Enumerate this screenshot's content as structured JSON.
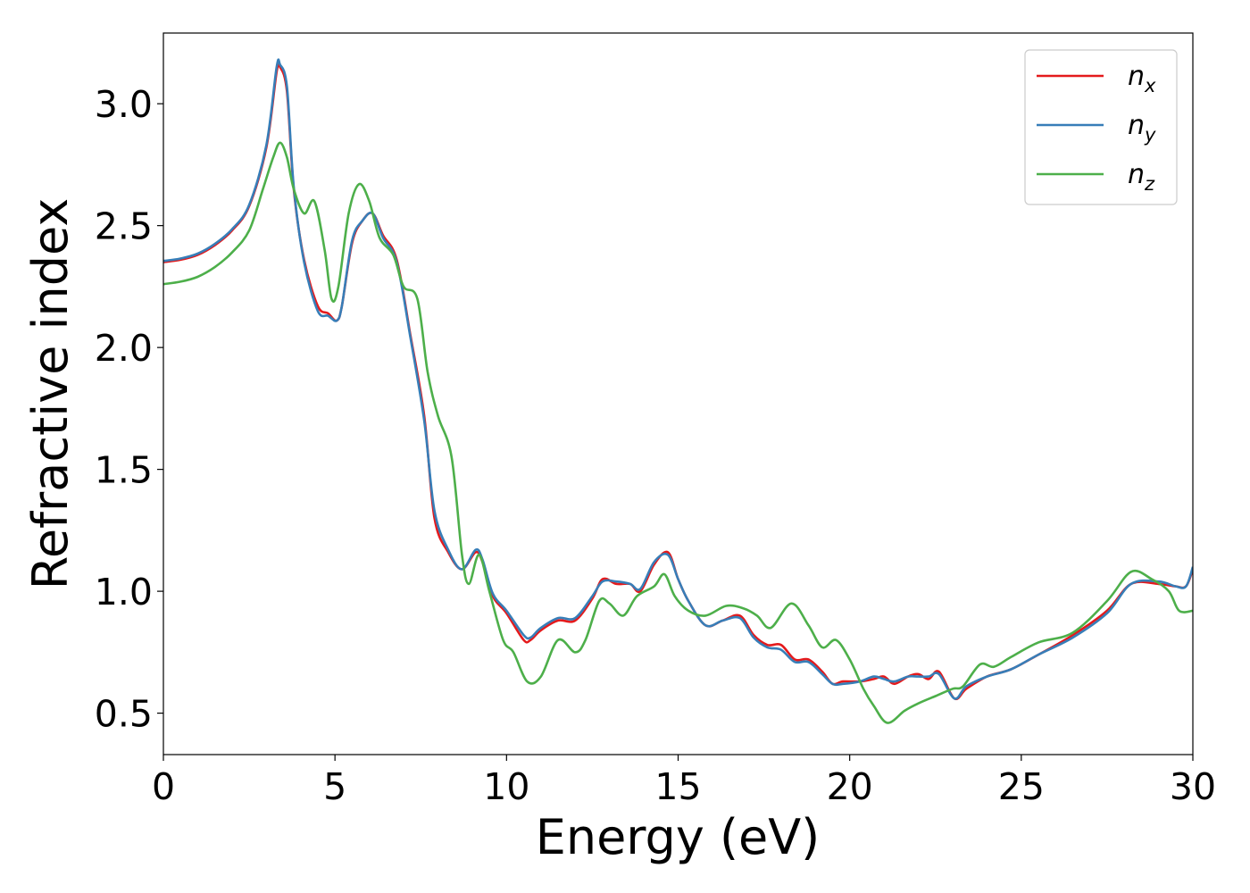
{
  "chart_data": {
    "type": "line",
    "xlabel": "Energy (eV)",
    "ylabel": "Refractive index",
    "xlim": [
      0,
      30
    ],
    "ylim": [
      0.33,
      3.29
    ],
    "xticks": [
      0,
      5,
      10,
      15,
      20,
      25,
      30
    ],
    "yticks": [
      0.5,
      1.0,
      1.5,
      2.0,
      2.5,
      3.0
    ],
    "xtick_labels": [
      "0",
      "5",
      "10",
      "15",
      "20",
      "25",
      "30"
    ],
    "ytick_labels": [
      "0.5",
      "1.0",
      "1.5",
      "2.0",
      "2.5",
      "3.0"
    ],
    "grid": false,
    "legend_position": "top-right",
    "series": [
      {
        "name": "n_x",
        "legend_base": "n",
        "legend_sub": "x",
        "color": "#e41a1c",
        "points": [
          [
            0,
            2.35
          ],
          [
            0.5,
            2.36
          ],
          [
            1,
            2.38
          ],
          [
            1.5,
            2.42
          ],
          [
            2,
            2.48
          ],
          [
            2.5,
            2.58
          ],
          [
            3,
            2.82
          ],
          [
            3.3,
            3.13
          ],
          [
            3.4,
            3.15
          ],
          [
            3.6,
            3.05
          ],
          [
            3.8,
            2.65
          ],
          [
            4.1,
            2.36
          ],
          [
            4.5,
            2.17
          ],
          [
            4.8,
            2.14
          ],
          [
            5.05,
            2.11
          ],
          [
            5.2,
            2.17
          ],
          [
            5.5,
            2.43
          ],
          [
            5.8,
            2.52
          ],
          [
            6.1,
            2.55
          ],
          [
            6.4,
            2.46
          ],
          [
            6.8,
            2.36
          ],
          [
            7.2,
            2.05
          ],
          [
            7.6,
            1.72
          ],
          [
            7.9,
            1.3
          ],
          [
            8.3,
            1.16
          ],
          [
            8.7,
            1.09
          ],
          [
            9.1,
            1.16
          ],
          [
            9.3,
            1.12
          ],
          [
            9.6,
            0.98
          ],
          [
            10,
            0.91
          ],
          [
            10.5,
            0.8
          ],
          [
            10.7,
            0.8
          ],
          [
            11,
            0.84
          ],
          [
            11.5,
            0.88
          ],
          [
            12,
            0.88
          ],
          [
            12.5,
            0.97
          ],
          [
            12.8,
            1.05
          ],
          [
            13.2,
            1.03
          ],
          [
            13.6,
            1.03
          ],
          [
            13.9,
            1.0
          ],
          [
            14.3,
            1.11
          ],
          [
            14.7,
            1.16
          ],
          [
            15,
            1.05
          ],
          [
            15.3,
            0.96
          ],
          [
            15.8,
            0.86
          ],
          [
            16.3,
            0.88
          ],
          [
            16.8,
            0.9
          ],
          [
            17.2,
            0.82
          ],
          [
            17.6,
            0.78
          ],
          [
            18,
            0.78
          ],
          [
            18.4,
            0.72
          ],
          [
            18.8,
            0.72
          ],
          [
            19.2,
            0.67
          ],
          [
            19.5,
            0.62
          ],
          [
            19.8,
            0.63
          ],
          [
            20.3,
            0.63
          ],
          [
            20.7,
            0.64
          ],
          [
            21,
            0.65
          ],
          [
            21.3,
            0.62
          ],
          [
            21.7,
            0.65
          ],
          [
            22,
            0.66
          ],
          [
            22.3,
            0.64
          ],
          [
            22.6,
            0.67
          ],
          [
            23.05,
            0.56
          ],
          [
            23.4,
            0.6
          ],
          [
            24,
            0.65
          ],
          [
            24.7,
            0.68
          ],
          [
            25.5,
            0.74
          ],
          [
            26.5,
            0.82
          ],
          [
            27.5,
            0.92
          ],
          [
            28.2,
            1.03
          ],
          [
            29,
            1.03
          ],
          [
            29.5,
            1.02
          ],
          [
            29.8,
            1.02
          ],
          [
            30,
            1.09
          ]
        ]
      },
      {
        "name": "n_y",
        "legend_base": "n",
        "legend_sub": "y",
        "color": "#377eb8",
        "points": [
          [
            0,
            2.355
          ],
          [
            0.5,
            2.365
          ],
          [
            1,
            2.385
          ],
          [
            1.5,
            2.425
          ],
          [
            2,
            2.485
          ],
          [
            2.5,
            2.585
          ],
          [
            3,
            2.83
          ],
          [
            3.3,
            3.15
          ],
          [
            3.4,
            3.16
          ],
          [
            3.6,
            3.07
          ],
          [
            3.8,
            2.66
          ],
          [
            4.1,
            2.35
          ],
          [
            4.5,
            2.15
          ],
          [
            4.8,
            2.13
          ],
          [
            5.05,
            2.11
          ],
          [
            5.2,
            2.17
          ],
          [
            5.5,
            2.44
          ],
          [
            5.8,
            2.52
          ],
          [
            6.1,
            2.55
          ],
          [
            6.4,
            2.45
          ],
          [
            6.8,
            2.35
          ],
          [
            7.2,
            2.04
          ],
          [
            7.6,
            1.7
          ],
          [
            7.9,
            1.33
          ],
          [
            8.3,
            1.17
          ],
          [
            8.7,
            1.09
          ],
          [
            9.1,
            1.17
          ],
          [
            9.3,
            1.13
          ],
          [
            9.6,
            0.99
          ],
          [
            10,
            0.92
          ],
          [
            10.5,
            0.82
          ],
          [
            10.7,
            0.81
          ],
          [
            11,
            0.85
          ],
          [
            11.5,
            0.89
          ],
          [
            12,
            0.89
          ],
          [
            12.5,
            0.98
          ],
          [
            12.8,
            1.04
          ],
          [
            13.2,
            1.04
          ],
          [
            13.6,
            1.03
          ],
          [
            13.9,
            1.01
          ],
          [
            14.3,
            1.12
          ],
          [
            14.7,
            1.15
          ],
          [
            15,
            1.05
          ],
          [
            15.3,
            0.96
          ],
          [
            15.8,
            0.86
          ],
          [
            16.3,
            0.88
          ],
          [
            16.8,
            0.89
          ],
          [
            17.2,
            0.81
          ],
          [
            17.6,
            0.77
          ],
          [
            18,
            0.76
          ],
          [
            18.4,
            0.71
          ],
          [
            18.8,
            0.71
          ],
          [
            19.2,
            0.66
          ],
          [
            19.5,
            0.62
          ],
          [
            19.8,
            0.62
          ],
          [
            20.3,
            0.63
          ],
          [
            20.7,
            0.65
          ],
          [
            21,
            0.64
          ],
          [
            21.3,
            0.63
          ],
          [
            21.7,
            0.65
          ],
          [
            22,
            0.65
          ],
          [
            22.3,
            0.65
          ],
          [
            22.6,
            0.66
          ],
          [
            23.05,
            0.56
          ],
          [
            23.4,
            0.61
          ],
          [
            24,
            0.65
          ],
          [
            24.7,
            0.68
          ],
          [
            25.5,
            0.74
          ],
          [
            26.5,
            0.81
          ],
          [
            27.5,
            0.91
          ],
          [
            28.2,
            1.03
          ],
          [
            29,
            1.04
          ],
          [
            29.5,
            1.02
          ],
          [
            29.8,
            1.02
          ],
          [
            30,
            1.1
          ]
        ]
      },
      {
        "name": "n_z",
        "legend_base": "n",
        "legend_sub": "z",
        "color": "#4daf4a",
        "points": [
          [
            0,
            2.26
          ],
          [
            0.5,
            2.27
          ],
          [
            1,
            2.29
          ],
          [
            1.5,
            2.33
          ],
          [
            2,
            2.39
          ],
          [
            2.5,
            2.48
          ],
          [
            2.9,
            2.65
          ],
          [
            3.2,
            2.78
          ],
          [
            3.4,
            2.84
          ],
          [
            3.6,
            2.78
          ],
          [
            3.8,
            2.65
          ],
          [
            4.1,
            2.55
          ],
          [
            4.4,
            2.6
          ],
          [
            4.7,
            2.4
          ],
          [
            4.9,
            2.2
          ],
          [
            5.1,
            2.25
          ],
          [
            5.4,
            2.55
          ],
          [
            5.7,
            2.67
          ],
          [
            6.0,
            2.6
          ],
          [
            6.3,
            2.45
          ],
          [
            6.7,
            2.38
          ],
          [
            7.0,
            2.25
          ],
          [
            7.4,
            2.2
          ],
          [
            7.7,
            1.9
          ],
          [
            8.0,
            1.72
          ],
          [
            8.4,
            1.55
          ],
          [
            8.7,
            1.15
          ],
          [
            8.9,
            1.03
          ],
          [
            9.2,
            1.15
          ],
          [
            9.5,
            1.0
          ],
          [
            9.9,
            0.8
          ],
          [
            10.2,
            0.75
          ],
          [
            10.6,
            0.63
          ],
          [
            11.0,
            0.65
          ],
          [
            11.5,
            0.8
          ],
          [
            12.0,
            0.75
          ],
          [
            12.3,
            0.8
          ],
          [
            12.7,
            0.96
          ],
          [
            13.0,
            0.95
          ],
          [
            13.4,
            0.9
          ],
          [
            13.8,
            0.98
          ],
          [
            14.3,
            1.02
          ],
          [
            14.6,
            1.07
          ],
          [
            14.9,
            0.98
          ],
          [
            15.3,
            0.92
          ],
          [
            15.8,
            0.9
          ],
          [
            16.4,
            0.94
          ],
          [
            16.9,
            0.93
          ],
          [
            17.3,
            0.9
          ],
          [
            17.7,
            0.85
          ],
          [
            18.3,
            0.95
          ],
          [
            18.8,
            0.86
          ],
          [
            19.2,
            0.77
          ],
          [
            19.6,
            0.8
          ],
          [
            20.0,
            0.72
          ],
          [
            20.4,
            0.6
          ],
          [
            20.7,
            0.53
          ],
          [
            21.1,
            0.46
          ],
          [
            21.6,
            0.51
          ],
          [
            22.0,
            0.54
          ],
          [
            22.5,
            0.57
          ],
          [
            23.0,
            0.6
          ],
          [
            23.3,
            0.61
          ],
          [
            23.8,
            0.7
          ],
          [
            24.2,
            0.69
          ],
          [
            24.7,
            0.73
          ],
          [
            25.5,
            0.79
          ],
          [
            26.5,
            0.83
          ],
          [
            27.5,
            0.96
          ],
          [
            28.2,
            1.08
          ],
          [
            28.8,
            1.05
          ],
          [
            29.3,
            1.0
          ],
          [
            29.6,
            0.92
          ],
          [
            30,
            0.92
          ]
        ]
      }
    ]
  }
}
